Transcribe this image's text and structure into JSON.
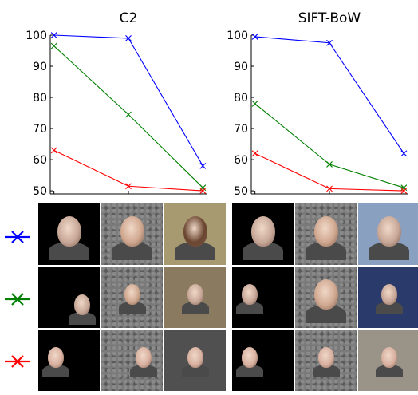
{
  "chart_data": [
    {
      "type": "line",
      "title": "C2",
      "xlabel": "",
      "ylabel": "",
      "x": [
        1,
        2,
        3
      ],
      "xlim": [
        0.95,
        3.05
      ],
      "ylim": [
        49,
        100
      ],
      "yticks": [
        50,
        60,
        70,
        80,
        90,
        100
      ],
      "grid": false,
      "marker": "x",
      "series": [
        {
          "color": "#0000ff",
          "values": [
            100,
            99,
            58
          ]
        },
        {
          "color": "#008000",
          "values": [
            96.5,
            74.5,
            51
          ]
        },
        {
          "color": "#ff0000",
          "values": [
            63,
            51.5,
            50
          ]
        }
      ]
    },
    {
      "type": "line",
      "title": "SIFT-BoW",
      "xlabel": "",
      "ylabel": "",
      "x": [
        1,
        2,
        3
      ],
      "xlim": [
        0.95,
        3.05
      ],
      "ylim": [
        49,
        100
      ],
      "yticks": [
        50,
        60,
        70,
        80,
        90,
        100
      ],
      "grid": false,
      "marker": "x",
      "series": [
        {
          "color": "#0000ff",
          "values": [
            99.5,
            97.5,
            62
          ]
        },
        {
          "color": "#008000",
          "values": [
            78,
            58.5,
            51
          ]
        },
        {
          "color": "#ff0000",
          "values": [
            62,
            50.7,
            50
          ]
        }
      ]
    }
  ],
  "legend": [
    {
      "color": "#0000ff"
    },
    {
      "color": "#008000"
    },
    {
      "color": "#ff0000"
    }
  ],
  "images": {
    "left": [
      [
        {
          "background": "#000000",
          "face": "#c8a898",
          "pos": "center",
          "scale": "large"
        },
        {
          "background": "#7a7a7a",
          "face": "#d0a890",
          "pos": "center",
          "scale": "large"
        },
        {
          "background": "#a89a70",
          "face": "#6a4530",
          "pos": "center",
          "scale": "large"
        }
      ],
      [
        {
          "background": "#000000",
          "face": "#c8a898",
          "pos": "lower-right",
          "scale": "small"
        },
        {
          "background": "#7a7a7a",
          "face": "#d0a890",
          "pos": "center",
          "scale": "small"
        },
        {
          "background": "#8a7a60",
          "face": "#c8a898",
          "pos": "center",
          "scale": "small"
        }
      ],
      [
        {
          "background": "#000000",
          "face": "#d8b0a0",
          "pos": "left",
          "scale": "small"
        },
        {
          "background": "#7a7a7a",
          "face": "#d8b0a0",
          "pos": "right",
          "scale": "small"
        },
        {
          "background": "#505050",
          "face": "#d8b0a0",
          "pos": "center",
          "scale": "small"
        }
      ]
    ],
    "right": [
      [
        {
          "background": "#000000",
          "face": "#c8a898",
          "pos": "center",
          "scale": "large"
        },
        {
          "background": "#7a7a7a",
          "face": "#d0a890",
          "pos": "center",
          "scale": "large"
        },
        {
          "background": "#8aa0c0",
          "face": "#c8a898",
          "pos": "center",
          "scale": "large"
        }
      ],
      [
        {
          "background": "#000000",
          "face": "#c8a898",
          "pos": "left",
          "scale": "small"
        },
        {
          "background": "#7a7a7a",
          "face": "#d0a890",
          "pos": "center",
          "scale": "large"
        },
        {
          "background": "#2a3a6a",
          "face": "#c8a898",
          "pos": "center",
          "scale": "small"
        }
      ],
      [
        {
          "background": "#000000",
          "face": "#d8b0a0",
          "pos": "left",
          "scale": "small"
        },
        {
          "background": "#7a7a7a",
          "face": "#d8b0a0",
          "pos": "center",
          "scale": "small"
        },
        {
          "background": "#9a9488",
          "face": "#d8b0a0",
          "pos": "center",
          "scale": "small"
        }
      ]
    ]
  }
}
